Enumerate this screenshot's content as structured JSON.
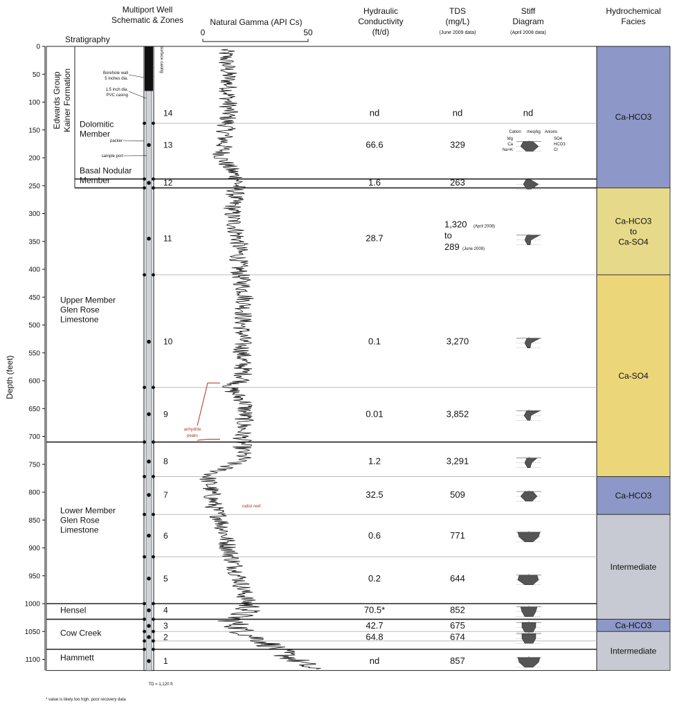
{
  "headers": {
    "stratigraphy": "Stratigraphy",
    "well_line1": "Multiport Well",
    "well_line2": "Schematic & Zones",
    "gamma": "Natural Gamma (API Cs)",
    "gamma_min": "0",
    "gamma_max": "50",
    "k_line1": "Hydraulic",
    "k_line2": "Conductivity",
    "k_line3": "(ft/d)",
    "tds_line1": "TDS",
    "tds_line2": "(mg/L)",
    "tds_line3": "(June 2009 data)",
    "stiff_line1": "Stiff",
    "stiff_line2": "Diagram",
    "stiff_line3": "(April 2008 data)",
    "facies_line1": "Hydrochemical",
    "facies_line2": "Facies"
  },
  "depth_axis": {
    "label": "Depth (feet)",
    "min": 0,
    "max": 1120,
    "ticks": [
      0,
      50,
      100,
      150,
      200,
      250,
      300,
      350,
      400,
      450,
      500,
      550,
      600,
      650,
      700,
      750,
      800,
      850,
      900,
      950,
      1000,
      1050,
      1100
    ]
  },
  "formation": {
    "line1": "Edwards Group",
    "line2": "Kainer Formation"
  },
  "strat_units": [
    {
      "lines": [
        "Dolomitic",
        "Member"
      ],
      "label_depth": 145
    },
    {
      "lines": [
        "Basal Nodular",
        "Member"
      ],
      "label_depth": 228
    },
    {
      "lines": [
        "Upper Member",
        "Glen Rose",
        "Limestone"
      ],
      "label_depth": 460
    },
    {
      "lines": [
        "Lower Member",
        "Glen Rose",
        "Limestone"
      ],
      "label_depth": 838
    },
    {
      "lines": [
        "Hensel"
      ],
      "label_depth": 1017
    },
    {
      "lines": [
        "Cow Creek"
      ],
      "label_depth": 1058
    },
    {
      "lines": [
        "Hammett"
      ],
      "label_depth": 1102
    }
  ],
  "strat_boundaries": [
    0,
    238,
    254,
    710,
    1000,
    1028,
    1082,
    1120
  ],
  "zone_boundaries": [
    138,
    238,
    254,
    410,
    612,
    710,
    772,
    840,
    916,
    1000,
    1028,
    1050,
    1067,
    1082
  ],
  "well_annotations": {
    "surface_casing": "surface casing",
    "borehole_l1": "Borehole wall",
    "borehole_l2": "5 inches dia.",
    "pvc_l1": "1.5 inch dia.",
    "pvc_l2": "PVC casing",
    "packer": "packer",
    "sample_port": "sample port",
    "td": "TD = 1,120 ft"
  },
  "zones": [
    {
      "zone": "14",
      "depth": 120,
      "k": "nd",
      "tds": "nd",
      "stiff": "nd"
    },
    {
      "zone": "13",
      "depth": 177,
      "k": "66.6",
      "tds": "329"
    },
    {
      "zone": "12",
      "depth": 245,
      "k": "1.6",
      "tds": "263"
    },
    {
      "zone": "11",
      "depth": 345,
      "k": "28.7",
      "tds": "1,320",
      "tds_note1": "(April 2008)",
      "tds_mid": "to",
      "tds_2": "289",
      "tds_note2": "(June 2009)"
    },
    {
      "zone": "10",
      "depth": 530,
      "k": "0.1",
      "tds": "3,270"
    },
    {
      "zone": "9",
      "depth": 660,
      "k": "0.01",
      "tds": "3,852"
    },
    {
      "zone": "8",
      "depth": 745,
      "k": "1.2",
      "tds": "3,291"
    },
    {
      "zone": "7",
      "depth": 805,
      "k": "32.5",
      "tds": "509"
    },
    {
      "zone": "6",
      "depth": 878,
      "k": "0.6",
      "tds": "771"
    },
    {
      "zone": "5",
      "depth": 955,
      "k": "0.2",
      "tds": "644"
    },
    {
      "zone": "4",
      "depth": 1012,
      "k": "70.5*",
      "tds": "852"
    },
    {
      "zone": "3",
      "depth": 1040,
      "k": "42.7",
      "tds": "675"
    },
    {
      "zone": "2",
      "depth": 1060,
      "k": "64.8",
      "tds": "674"
    },
    {
      "zone": "1",
      "depth": 1103,
      "k": "nd",
      "tds": "857"
    }
  ],
  "stiff_legend": {
    "cation": "Cation",
    "units": "meq/kg",
    "anions": "Anions",
    "mg": "Mg",
    "ca": "Ca",
    "nak": "Na+K",
    "so4": "SO4",
    "hco3": "HCO3",
    "cl": "Cl"
  },
  "facies": [
    {
      "label_lines": [
        "Ca-HCO3"
      ],
      "top": 0,
      "bottom": 254,
      "color": "#8d97c8"
    },
    {
      "label_lines": [
        "Ca-HCO3",
        "to",
        "Ca-SO4"
      ],
      "top": 254,
      "bottom": 410,
      "color": "#e6d98a"
    },
    {
      "label_lines": [
        "Ca-SO4"
      ],
      "top": 410,
      "bottom": 772,
      "color": "#ecd67a"
    },
    {
      "label_lines": [
        "Ca-HCO3"
      ],
      "top": 772,
      "bottom": 840,
      "color": "#8d97c8"
    },
    {
      "label_lines": [
        "Intermediate"
      ],
      "top": 840,
      "bottom": 1028,
      "color": "#c8cad3"
    },
    {
      "label_lines": [
        "Ca-HCO3"
      ],
      "top": 1028,
      "bottom": 1050,
      "color": "#8d97c8"
    },
    {
      "label_lines": [
        "Intermediate"
      ],
      "top": 1050,
      "bottom": 1120,
      "color": "#c8cad3"
    }
  ],
  "annotations": {
    "anhydrite_l1": "anhydrite",
    "anhydrite_l2": "peaks",
    "rudist": "rudist reef"
  },
  "footnote": "* value is likely too high, poor recovery data",
  "colors": {
    "annotation_red": "#b0311c",
    "gamma_line": "#111111",
    "well_fill": "#cfd4da"
  }
}
